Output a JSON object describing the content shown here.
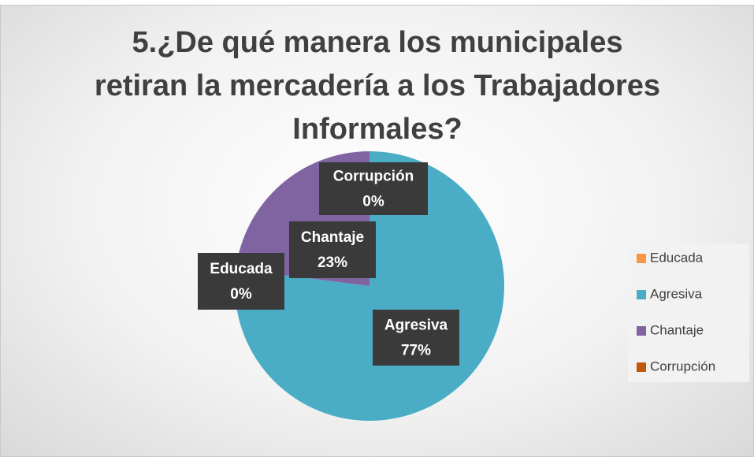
{
  "chart_data": {
    "type": "pie",
    "title": "5.¿De qué manera los municipales retiran la mercadería a los Trabajadores Informales?",
    "categories": [
      "Educada",
      "Agresiva",
      "Chantaje",
      "Corrupción"
    ],
    "values": [
      0,
      77,
      23,
      0
    ],
    "value_labels": [
      "0%",
      "77%",
      "23%",
      "0%"
    ],
    "colors": [
      "#f79646",
      "#4bacc6",
      "#8064a2",
      "#c0580e"
    ],
    "legend": "right"
  }
}
